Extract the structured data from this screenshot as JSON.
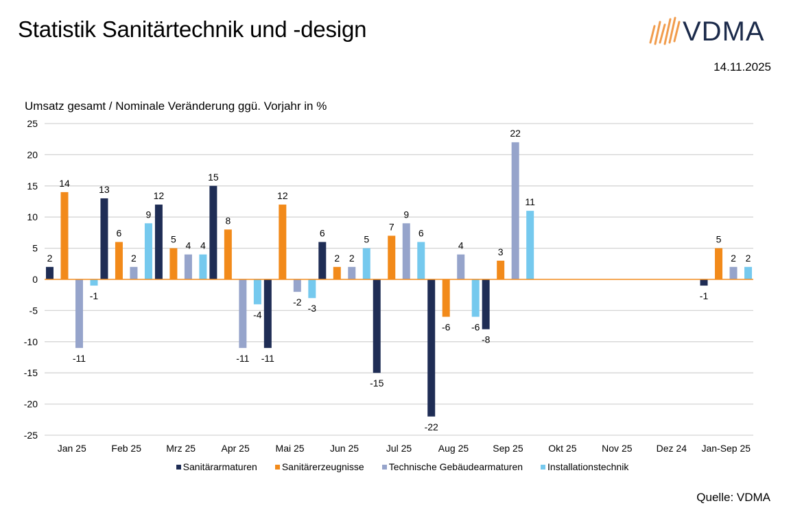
{
  "header": {
    "title": "Statistik Sanitärtechnik und -design",
    "logo_text": "VDMA",
    "date": "14.11.2025"
  },
  "footer": {
    "source": "Quelle: VDMA"
  },
  "chart_data": {
    "type": "bar",
    "title": "Statistik Sanitärtechnik und -design",
    "subtitle": "Umsatz gesamt / Nominale Veränderung ggü. Vorjahr in %",
    "xlabel": "",
    "ylabel": "Umsatz gesamt / Nominale Veränderung ggü. Vorjahr in %",
    "ylim": [
      -25,
      25
    ],
    "yticks": [
      25,
      20,
      15,
      10,
      5,
      0,
      -5,
      -10,
      -15,
      -20,
      -25
    ],
    "grid": true,
    "legend_position": "bottom",
    "categories": [
      "Jan 25",
      "Feb 25",
      "Mrz 25",
      "Apr 25",
      "Mai 25",
      "Jun 25",
      "Jul 25",
      "Aug 25",
      "Sep 25",
      "Okt 25",
      "Nov 25",
      "Dez 24",
      "Jan-Sep 25"
    ],
    "series": [
      {
        "name": "Sanitärarmaturen",
        "color": "#1f2d55",
        "values": [
          2,
          13,
          12,
          15,
          -11,
          6,
          -15,
          -22,
          -8,
          null,
          null,
          null,
          -1
        ]
      },
      {
        "name": "Sanitärerzeugnisse",
        "color": "#f28a1a",
        "values": [
          14,
          6,
          5,
          8,
          12,
          2,
          7,
          -6,
          3,
          null,
          null,
          null,
          5
        ]
      },
      {
        "name": "Technische Gebäudearmaturen",
        "color": "#96a4cb",
        "values": [
          -11,
          2,
          4,
          -11,
          -2,
          2,
          9,
          4,
          22,
          null,
          null,
          null,
          2
        ]
      },
      {
        "name": "Installationstechnik",
        "color": "#75c9ee",
        "values": [
          -1,
          9,
          4,
          -4,
          -3,
          5,
          6,
          -6,
          11,
          null,
          null,
          null,
          2
        ]
      }
    ],
    "zero_line_color": "#f28a1a"
  }
}
